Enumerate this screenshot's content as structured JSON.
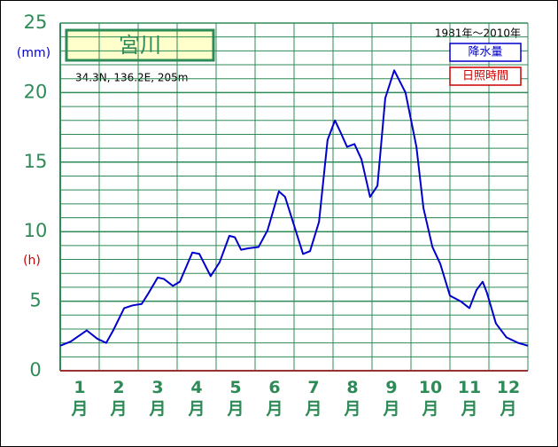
{
  "chart_data": {
    "type": "line",
    "title": "宮川",
    "subtitle": "34.3N, 136.2E, 205m",
    "period": "1981年～2010年",
    "y_unit": "(mm)",
    "y2_unit": "(h)",
    "legend": [
      {
        "name": "降水量",
        "color": "#0000cc"
      },
      {
        "name": "日照時間",
        "color": "#cc0000"
      }
    ],
    "xlim": [
      0,
      12
    ],
    "ylim": [
      0,
      25
    ],
    "yticks": [
      0,
      5,
      10,
      15,
      20,
      25
    ],
    "xticks": [
      {
        "value": 0.5,
        "label": "1月"
      },
      {
        "value": 1.5,
        "label": "2月"
      },
      {
        "value": 2.5,
        "label": "3月"
      },
      {
        "value": 3.5,
        "label": "4月"
      },
      {
        "value": 4.5,
        "label": "5月"
      },
      {
        "value": 5.5,
        "label": "6月"
      },
      {
        "value": 6.5,
        "label": "7月"
      },
      {
        "value": 7.5,
        "label": "8月"
      },
      {
        "value": 8.5,
        "label": "9月"
      },
      {
        "value": 9.5,
        "label": "10月"
      },
      {
        "value": 10.5,
        "label": "11月"
      },
      {
        "value": 11.5,
        "label": "12月"
      }
    ],
    "grid": true,
    "series": [
      {
        "name": "降水量",
        "color": "#0000cc",
        "x": [
          0,
          0.27,
          0.68,
          0.95,
          1.18,
          1.36,
          1.64,
          1.86,
          2.09,
          2.27,
          2.5,
          2.66,
          2.89,
          3.07,
          3.39,
          3.57,
          3.86,
          4.09,
          4.34,
          4.48,
          4.64,
          4.82,
          5.09,
          5.32,
          5.61,
          5.77,
          6.23,
          6.41,
          6.64,
          6.86,
          7.05,
          7.2,
          7.36,
          7.55,
          7.73,
          7.95,
          8.14,
          8.34,
          8.57,
          8.86,
          9.14,
          9.32,
          9.55,
          9.75,
          10.0,
          10.27,
          10.5,
          10.68,
          10.84,
          10.95,
          11.18,
          11.45,
          11.75,
          12.0
        ],
        "values": [
          1.8,
          2.1,
          2.9,
          2.3,
          2.0,
          2.9,
          4.5,
          4.7,
          4.8,
          5.6,
          6.7,
          6.6,
          6.1,
          6.4,
          8.5,
          8.4,
          6.8,
          7.8,
          9.7,
          9.6,
          8.7,
          8.8,
          8.9,
          10.1,
          12.9,
          12.5,
          8.4,
          8.6,
          10.7,
          16.6,
          18.0,
          17.1,
          16.1,
          16.3,
          15.2,
          12.5,
          13.3,
          19.6,
          21.6,
          20.0,
          16.1,
          11.7,
          8.9,
          7.7,
          5.4,
          5.0,
          4.5,
          5.8,
          6.4,
          5.6,
          3.4,
          2.4,
          2.0,
          1.8
        ]
      }
    ]
  }
}
